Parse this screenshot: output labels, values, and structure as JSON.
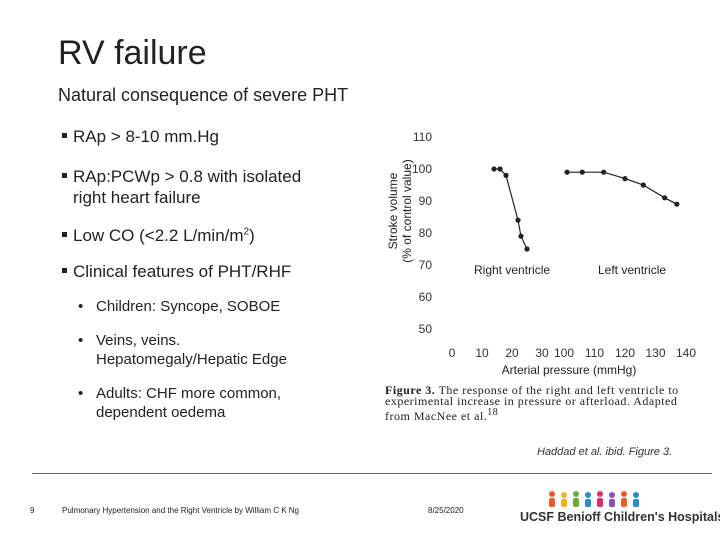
{
  "slide": {
    "title": "RV failure",
    "subtitle": "Natural consequence of severe PHT",
    "bullets": [
      "RAp > 8-10 mm.Hg",
      "RAp:PCWp > 0.8 with isolated right heart failure",
      "Low CO (<2.2 L/min/m",
      "Clinical features of PHT/RHF"
    ],
    "bullet_low_co_sup": "2",
    "bullet_low_co_tail": ")",
    "bullet_rap_pcwp_line1": "RAp:PCWp > 0.8 with isolated",
    "bullet_rap_pcwp_line2": "right heart failure",
    "sub_bullets": {
      "children": "Children: Syncope, SOBOE",
      "veins_line1": "Veins, veins.",
      "veins_line2": "Hepatomegaly/Hepatic Edge",
      "adults_line1": "Adults: CHF more common,",
      "adults_line2": "dependent oedema"
    },
    "sub_bullet_marker": "•"
  },
  "figure_caption": {
    "label": "Figure 3.",
    "line1_rest": "The response of the right and left ventricle to",
    "line2": "experimental increase in pressure or afterload. Adapted",
    "line3": "from MacNee et al.",
    "ref": "18"
  },
  "citation": "Haddad et al. ibid. Figure 3.",
  "footer": {
    "page_number": "9",
    "course": "Pulmonary Hypertension and the Right Ventricle by William C K Ng",
    "date": "8/25/2020",
    "logo_prefix": "UCSF",
    "logo_text": "Benioff Children's Hospitals"
  },
  "chart_data": {
    "type": "line",
    "ylabel_line1": "Stroke volume",
    "ylabel_line2": "(% of control value)",
    "xlabel": "Arterial pressure (mmHg)",
    "ylim": [
      50,
      110
    ],
    "yticks": [
      "110",
      "100",
      "90",
      "80",
      "70",
      "60",
      "50"
    ],
    "right_xticks": [
      "0",
      "10",
      "20",
      "30"
    ],
    "left_xticks": [
      "100",
      "110",
      "120",
      "130",
      "140"
    ],
    "right_xlim": [
      0,
      30
    ],
    "left_xlim": [
      100,
      140
    ],
    "series": [
      {
        "name": "Right ventricle",
        "x": [
          14,
          16,
          18,
          22,
          23,
          25
        ],
        "y": [
          100,
          100,
          98,
          84,
          79,
          75
        ]
      },
      {
        "name": "Left ventricle",
        "x": [
          101,
          106,
          113,
          120,
          126,
          133,
          137
        ],
        "y": [
          99,
          99,
          99,
          97,
          95,
          91,
          89
        ]
      }
    ],
    "color": "#222222"
  }
}
